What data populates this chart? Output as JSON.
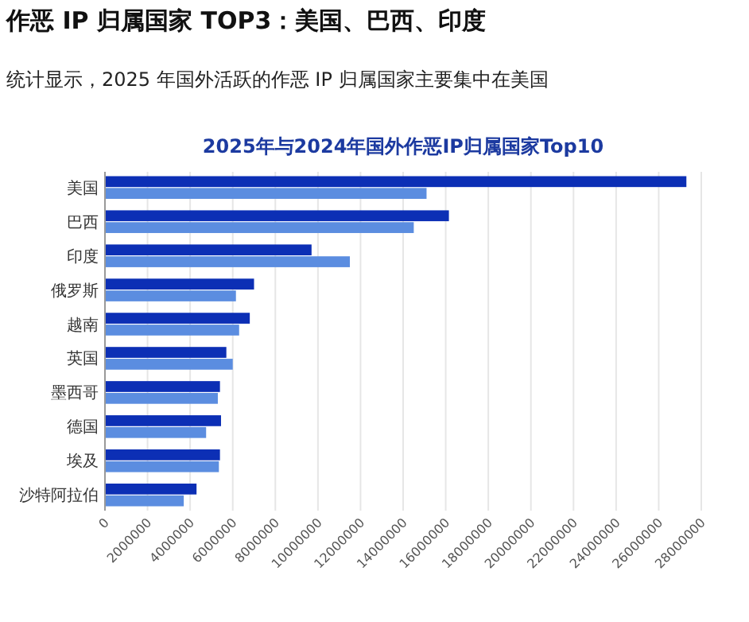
{
  "chart_data": {
    "type": "bar",
    "orientation": "horizontal",
    "title": "2025年与2024年国外作恶IP归属国家Top10",
    "annotations": [
      "作恶 IP 归属国家 TOP3：美国、巴西、印度",
      "统计显示，2025 年国外活跃的作恶 IP 归属国家主要集中在美国"
    ],
    "categories": [
      "美国",
      "巴西",
      "印度",
      "俄罗斯",
      "越南",
      "英国",
      "墨西哥",
      "德国",
      "埃及",
      "沙特阿拉伯"
    ],
    "series": [
      {
        "color": "#0c2fb5",
        "values": [
          27300000,
          16150000,
          9700000,
          7000000,
          6800000,
          5700000,
          5400000,
          5450000,
          5400000,
          4300000
        ]
      },
      {
        "color": "#5b8de0",
        "values": [
          15100000,
          14500000,
          11500000,
          6150000,
          6300000,
          6000000,
          5300000,
          4750000,
          5350000,
          3700000
        ]
      }
    ],
    "xlim": [
      0,
      28000000
    ],
    "xticks": [
      0,
      2000000,
      4000000,
      6000000,
      8000000,
      10000000,
      12000000,
      14000000,
      16000000,
      18000000,
      20000000,
      22000000,
      24000000,
      26000000,
      28000000
    ],
    "grid": "x"
  }
}
